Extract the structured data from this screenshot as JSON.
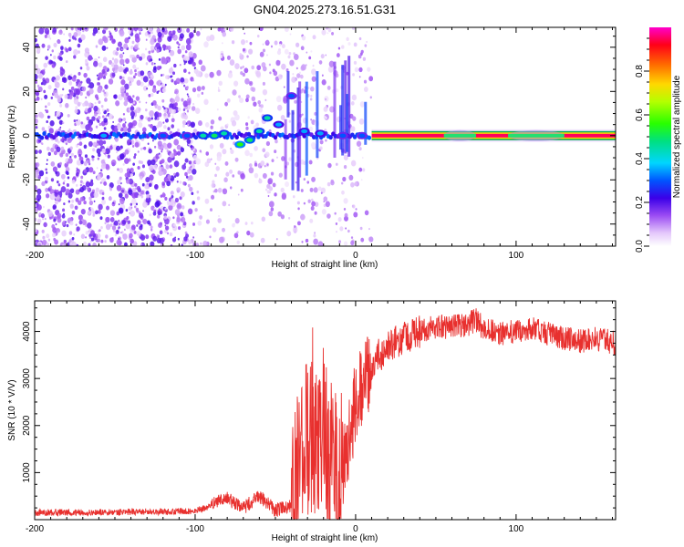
{
  "chart_data": [
    {
      "type": "heatmap",
      "title": "GN04.2025.273.16.51.G31",
      "xlabel": "Height of straight line (km)",
      "ylabel": "Frequency (Hz)",
      "xlim": [
        -200,
        162
      ],
      "ylim": [
        -50,
        49
      ],
      "x_ticks": [
        -200,
        -100,
        0,
        100
      ],
      "x_tick_labels": [
        "-200",
        "-100",
        "0",
        "100"
      ],
      "y_ticks": [
        -40,
        -20,
        0,
        20,
        40
      ],
      "y_tick_labels": [
        "-40",
        "-20",
        "0",
        "20",
        "40"
      ],
      "colorbar": {
        "label": "Normalized spectral amplitude",
        "range": [
          0,
          1
        ],
        "ticks": [
          0,
          0.2,
          0.4,
          0.6,
          0.8
        ],
        "tick_labels": [
          "0.0",
          "0.2",
          "0.4",
          "0.6",
          "0.8"
        ]
      },
      "regions": [
        {
          "x_range": [
            -200,
            -100
          ],
          "description": "scattered noise",
          "amplitude": 0.15
        },
        {
          "x_range": [
            -100,
            10
          ],
          "description": "scattered noise",
          "amplitude": 0.1
        },
        {
          "x_range": [
            10,
            162
          ],
          "description": "steady tone",
          "frequency": 0,
          "amplitude": 0.95
        }
      ],
      "ridge": [
        {
          "x": -157,
          "y": 0,
          "amp": 0.35
        },
        {
          "x": -120,
          "y": 0,
          "amp": 0.3
        },
        {
          "x": -105,
          "y": 0,
          "amp": 0.3
        },
        {
          "x": -95,
          "y": 0,
          "amp": 0.45
        },
        {
          "x": -88,
          "y": 0,
          "amp": 0.5
        },
        {
          "x": -82,
          "y": 1,
          "amp": 0.45
        },
        {
          "x": -72,
          "y": -4,
          "amp": 0.55
        },
        {
          "x": -66,
          "y": -2,
          "amp": 0.5
        },
        {
          "x": -60,
          "y": 2,
          "amp": 0.45
        },
        {
          "x": -55,
          "y": 8,
          "amp": 0.45
        },
        {
          "x": -48,
          "y": 5,
          "amp": 0.35
        },
        {
          "x": -40,
          "y": 18,
          "amp": 0.3
        },
        {
          "x": -32,
          "y": 2,
          "amp": 0.35
        },
        {
          "x": -22,
          "y": 1,
          "amp": 0.35
        },
        {
          "x": -8,
          "y": 0,
          "amp": 0.3
        },
        {
          "x": 4,
          "y": 0,
          "amp": 0.3
        }
      ]
    },
    {
      "type": "line",
      "title": "",
      "xlabel": "Height of straight line (km)",
      "ylabel": "SNR (10 * V/V)",
      "xlim": [
        -200,
        162
      ],
      "ylim": [
        0,
        4650
      ],
      "x_ticks": [
        -200,
        -100,
        0,
        100
      ],
      "x_tick_labels": [
        "-200",
        "-100",
        "0",
        "100"
      ],
      "y_ticks": [
        1000,
        2000,
        3000,
        4000
      ],
      "y_tick_labels": [
        "1000",
        "2000",
        "3000",
        "4000"
      ],
      "series": [
        {
          "name": "SNR",
          "color": "#e8302e",
          "x": [
            -200,
            -150,
            -100,
            -90,
            -85,
            -80,
            -70,
            -60,
            -50,
            -40,
            -35,
            -30,
            -25,
            -20,
            -15,
            -10,
            -5,
            0,
            10,
            20,
            30,
            40,
            50,
            60,
            70,
            75,
            80,
            90,
            100,
            110,
            120,
            130,
            140,
            150,
            162
          ],
          "y": [
            150,
            160,
            180,
            300,
            400,
            450,
            250,
            500,
            200,
            300,
            1200,
            1800,
            1500,
            2000,
            1300,
            900,
            1500,
            2500,
            3300,
            3700,
            3900,
            4000,
            4100,
            4100,
            4150,
            4250,
            4050,
            3950,
            4000,
            4050,
            3950,
            3850,
            3800,
            3850,
            3750
          ]
        }
      ]
    }
  ]
}
